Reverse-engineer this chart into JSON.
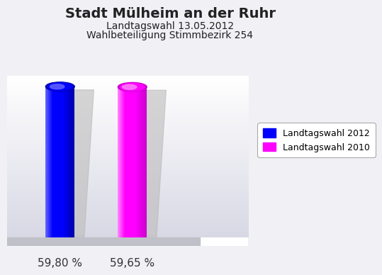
{
  "title": "Stadt Mülheim an der Ruhr",
  "subtitle1": "Landtagswahl 13.05.2012",
  "subtitle2": "Wahlbeteiligung Stimmbezirk 254",
  "categories": [
    "Landtagswahl 2012",
    "Landtagswahl 2010"
  ],
  "values": [
    59.8,
    59.65
  ],
  "labels": [
    "59,80 %",
    "59,65 %"
  ],
  "bar_colors_main": [
    "#0000ff",
    "#ff00ff"
  ],
  "bar_colors_dark": [
    "#0000aa",
    "#cc00cc"
  ],
  "bar_colors_light": [
    "#6666ff",
    "#ff88ff"
  ],
  "shadow_color": "#bbbbbb",
  "background_top": "#ffffff",
  "background_bottom": "#d8d8e8",
  "floor_color": "#c0c0c8",
  "title_fontsize": 14,
  "subtitle_fontsize": 10,
  "label_fontsize": 11,
  "legend_fontsize": 9,
  "bar_width": 0.12,
  "x_positions": [
    0.22,
    0.52
  ],
  "ylim": [
    0,
    75
  ],
  "xlim": [
    0,
    1.0
  ]
}
